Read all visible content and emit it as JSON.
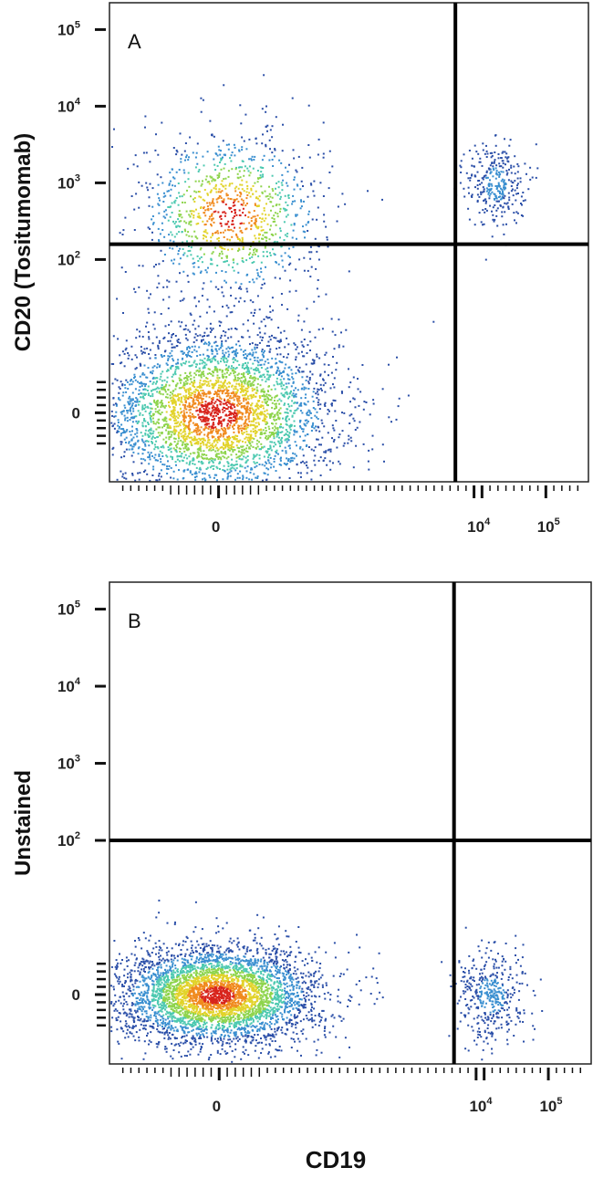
{
  "chart_data": [
    {
      "type": "scatter",
      "panel_label": "A",
      "ylabel": "CD20 (Tositumomab)",
      "xlabel": "",
      "x_scale": "biexponential",
      "y_scale": "biexponential",
      "x_ticks": [
        {
          "base": "0",
          "exp": ""
        },
        {
          "base": "10",
          "exp": "4"
        },
        {
          "base": "10",
          "exp": "5"
        }
      ],
      "y_ticks": [
        {
          "base": "10",
          "exp": "5"
        },
        {
          "base": "10",
          "exp": "4"
        },
        {
          "base": "10",
          "exp": "3"
        },
        {
          "base": "10",
          "exp": "2"
        },
        {
          "base": "0",
          "exp": ""
        }
      ],
      "gate": {
        "x_threshold_log": 3.6,
        "y_threshold_log": 2.2
      },
      "populations": [
        {
          "name": "",
          "cx": 0,
          "cy": 0,
          "sx": 0.9,
          "sy": 0.55,
          "n": 3800
        },
        {
          "name": "",
          "cx": 0.2,
          "cy": 2.6,
          "sx": 0.7,
          "sy": 0.55,
          "n": 1100
        },
        {
          "name": "",
          "cx": 4.2,
          "cy": 3.0,
          "sx": 0.22,
          "sy": 0.28,
          "n": 320
        }
      ],
      "density_colors": [
        "#2b4fa8",
        "#3a8fd0",
        "#4cc9b0",
        "#8ed44c",
        "#e2d32a",
        "#f08a1e",
        "#d8241c"
      ]
    },
    {
      "type": "scatter",
      "panel_label": "B",
      "ylabel": "Unstained",
      "xlabel": "CD19",
      "x_scale": "biexponential",
      "y_scale": "biexponential",
      "x_ticks": [
        {
          "base": "0",
          "exp": ""
        },
        {
          "base": "10",
          "exp": "4"
        },
        {
          "base": "10",
          "exp": "5"
        }
      ],
      "y_ticks": [
        {
          "base": "10",
          "exp": "5"
        },
        {
          "base": "10",
          "exp": "4"
        },
        {
          "base": "10",
          "exp": "3"
        },
        {
          "base": "10",
          "exp": "2"
        },
        {
          "base": "0",
          "exp": ""
        }
      ],
      "gate": {
        "x_threshold_log": 3.55,
        "y_threshold_log": 2.0
      },
      "populations": [
        {
          "name": "",
          "cx": 0,
          "cy": 0,
          "sx": 0.75,
          "sy": 0.32,
          "n": 4200
        },
        {
          "name": "",
          "cx": 4.1,
          "cy": 0,
          "sx": 0.25,
          "sy": 0.3,
          "n": 420
        }
      ],
      "density_colors": [
        "#2b4fa8",
        "#3a8fd0",
        "#4cc9b0",
        "#8ed44c",
        "#e2d32a",
        "#f08a1e",
        "#d8241c"
      ]
    }
  ]
}
